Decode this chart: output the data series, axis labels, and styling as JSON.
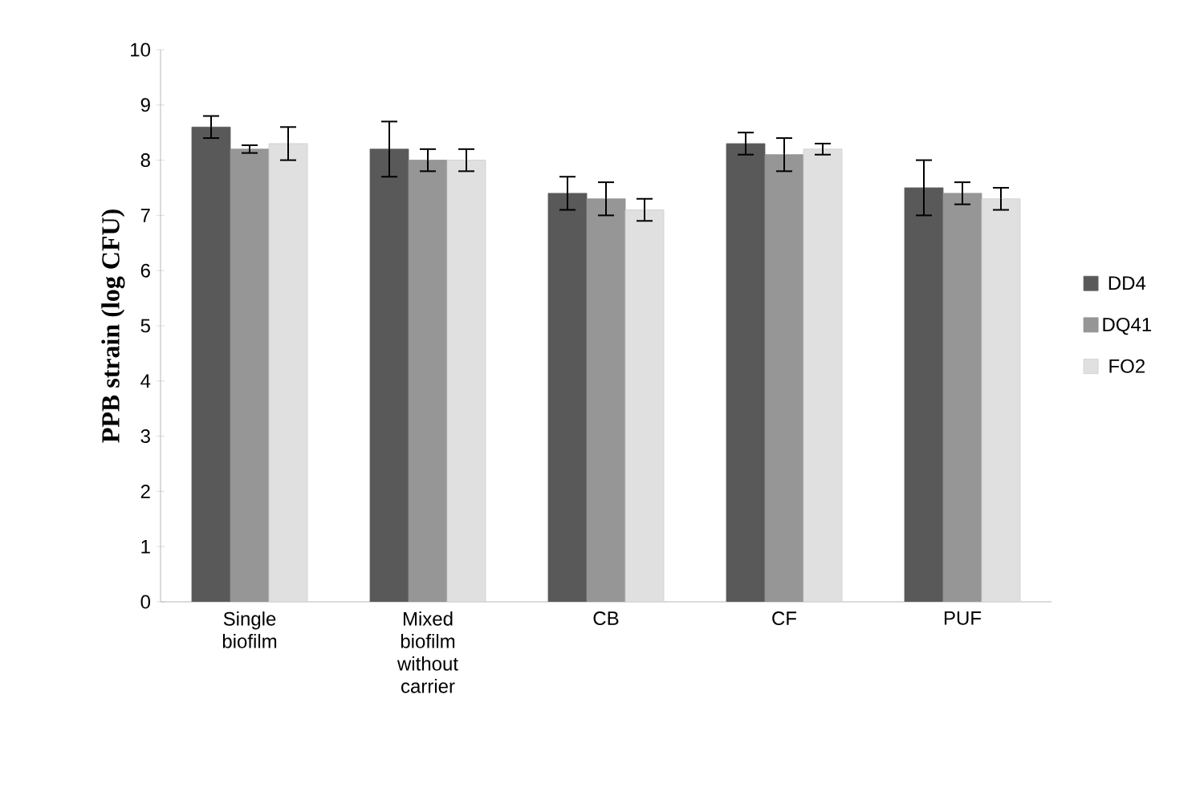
{
  "chart_data": {
    "type": "bar",
    "ylabel": "PPB strain (log CFU)",
    "categories": [
      "Single biofilm",
      "Mixed biofilm without carrier",
      "CB",
      "CF",
      "PUF"
    ],
    "series": [
      {
        "name": "DD4",
        "color": "#595959",
        "values": [
          8.6,
          8.2,
          7.4,
          8.3,
          7.5
        ],
        "errors": [
          0.2,
          0.5,
          0.3,
          0.2,
          0.5
        ]
      },
      {
        "name": "DQ41",
        "color": "#969696",
        "values": [
          8.2,
          8.0,
          7.3,
          8.1,
          7.4
        ],
        "errors": [
          0.07,
          0.2,
          0.3,
          0.3,
          0.2
        ]
      },
      {
        "name": "FO2",
        "color": "#e0e0e0",
        "values": [
          8.3,
          8.0,
          7.1,
          8.2,
          7.3
        ],
        "errors": [
          0.3,
          0.2,
          0.2,
          0.1,
          0.2
        ]
      }
    ],
    "ylim": [
      0,
      10
    ],
    "yticks": [
      0,
      1,
      2,
      3,
      4,
      5,
      6,
      7,
      8,
      9,
      10
    ],
    "grid": false,
    "legend": "right"
  }
}
